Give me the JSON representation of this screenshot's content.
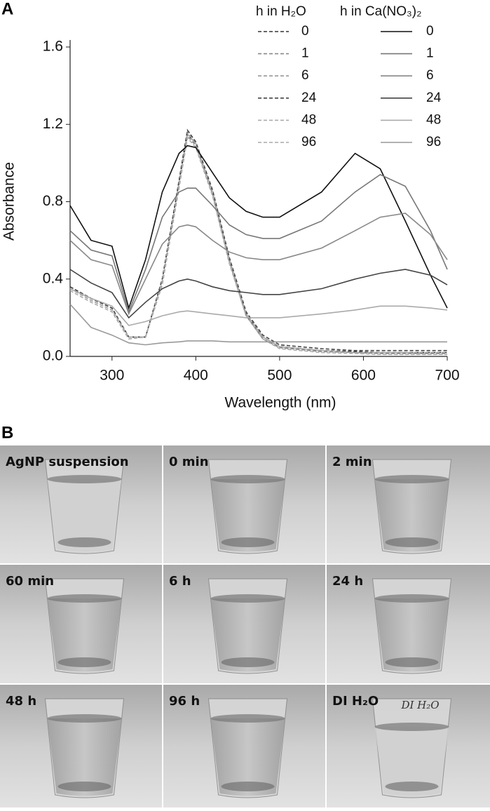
{
  "chart_data": {
    "type": "line",
    "panel_label": "A",
    "xlabel": "Wavelength (nm)",
    "ylabel": "Absorbance",
    "xlim": [
      250,
      700
    ],
    "xticks": [
      300,
      400,
      500,
      600,
      700
    ],
    "ylim": [
      0,
      1.6
    ],
    "yticks": [
      {
        "value": 0,
        "label": "0.0"
      },
      0.4,
      0.8,
      1.2,
      1.6
    ],
    "legend_titles": [
      "h in H₂O",
      "h in Ca(NO₃)₂"
    ],
    "x": [
      250,
      275,
      300,
      320,
      340,
      360,
      380,
      390,
      400,
      420,
      440,
      460,
      480,
      500,
      550,
      590,
      620,
      650,
      680,
      700
    ],
    "series": [
      {
        "name": "0",
        "style": "dashed",
        "color": "#333333",
        "values": [
          0.36,
          0.3,
          0.25,
          0.1,
          0.1,
          0.4,
          0.9,
          1.15,
          1.1,
          0.85,
          0.5,
          0.22,
          0.1,
          0.05,
          0.03,
          0.025,
          0.02,
          0.02,
          0.02,
          0.02
        ]
      },
      {
        "name": "1",
        "style": "dashed",
        "color": "#888888",
        "values": [
          0.35,
          0.29,
          0.24,
          0.1,
          0.1,
          0.38,
          0.88,
          1.14,
          1.09,
          0.84,
          0.49,
          0.21,
          0.09,
          0.045,
          0.025,
          0.02,
          0.015,
          0.015,
          0.015,
          0.015
        ]
      },
      {
        "name": "6",
        "style": "dashed",
        "color": "#999999",
        "values": [
          0.35,
          0.29,
          0.24,
          0.1,
          0.1,
          0.39,
          0.9,
          1.16,
          1.1,
          0.86,
          0.51,
          0.23,
          0.1,
          0.05,
          0.03,
          0.02,
          0.02,
          0.02,
          0.02,
          0.02
        ]
      },
      {
        "name": "24",
        "style": "dashed",
        "color": "#444444",
        "values": [
          0.36,
          0.3,
          0.25,
          0.1,
          0.1,
          0.4,
          0.91,
          1.17,
          1.11,
          0.86,
          0.51,
          0.23,
          0.11,
          0.06,
          0.04,
          0.03,
          0.03,
          0.03,
          0.03,
          0.03
        ]
      },
      {
        "name": "48",
        "style": "dashed",
        "color": "#aaaaaa",
        "values": [
          0.35,
          0.29,
          0.24,
          0.1,
          0.1,
          0.39,
          0.89,
          1.15,
          1.1,
          0.85,
          0.5,
          0.22,
          0.1,
          0.05,
          0.03,
          0.02,
          0.02,
          0.02,
          0.01,
          0.01
        ]
      },
      {
        "name": "96",
        "style": "dashed",
        "color": "#aaaaaa",
        "values": [
          0.34,
          0.28,
          0.23,
          0.09,
          0.1,
          0.37,
          0.87,
          1.13,
          1.08,
          0.83,
          0.48,
          0.21,
          0.09,
          0.04,
          0.02,
          0.015,
          0.01,
          0.01,
          0.01,
          0.01
        ]
      },
      {
        "name": "0",
        "style": "solid",
        "color": "#111111",
        "values": [
          0.78,
          0.6,
          0.57,
          0.25,
          0.5,
          0.85,
          1.05,
          1.09,
          1.08,
          0.95,
          0.82,
          0.75,
          0.72,
          0.72,
          0.85,
          1.05,
          0.97,
          0.7,
          0.42,
          0.25
        ]
      },
      {
        "name": "1",
        "style": "solid",
        "color": "#777777",
        "values": [
          0.65,
          0.55,
          0.52,
          0.23,
          0.45,
          0.72,
          0.85,
          0.87,
          0.87,
          0.78,
          0.68,
          0.63,
          0.61,
          0.61,
          0.7,
          0.85,
          0.94,
          0.88,
          0.65,
          0.45
        ]
      },
      {
        "name": "6",
        "style": "solid",
        "color": "#888888",
        "values": [
          0.6,
          0.5,
          0.47,
          0.22,
          0.4,
          0.58,
          0.67,
          0.68,
          0.67,
          0.6,
          0.54,
          0.51,
          0.5,
          0.5,
          0.56,
          0.65,
          0.72,
          0.74,
          0.63,
          0.5
        ]
      },
      {
        "name": "24",
        "style": "solid",
        "color": "#444444",
        "values": [
          0.45,
          0.38,
          0.33,
          0.2,
          0.28,
          0.35,
          0.39,
          0.4,
          0.39,
          0.36,
          0.34,
          0.33,
          0.32,
          0.32,
          0.35,
          0.4,
          0.43,
          0.45,
          0.42,
          0.37
        ]
      },
      {
        "name": "48",
        "style": "solid",
        "color": "#aaaaaa",
        "values": [
          0.35,
          0.3,
          0.26,
          0.16,
          0.18,
          0.21,
          0.23,
          0.235,
          0.23,
          0.22,
          0.21,
          0.2,
          0.2,
          0.2,
          0.22,
          0.24,
          0.26,
          0.26,
          0.25,
          0.24
        ]
      },
      {
        "name": "96",
        "style": "solid",
        "color": "#999999",
        "values": [
          0.27,
          0.15,
          0.11,
          0.07,
          0.06,
          0.07,
          0.075,
          0.08,
          0.08,
          0.08,
          0.075,
          0.075,
          0.075,
          0.075,
          0.075,
          0.075,
          0.075,
          0.075,
          0.075,
          0.075
        ]
      }
    ]
  },
  "photos": {
    "panel_label": "B",
    "labels": [
      "AgNP suspension",
      "0 min",
      "2 min",
      "60 min",
      "6 h",
      "24 h",
      "48 h",
      "96 h",
      "DI H₂O"
    ],
    "beaker_note": "DI H₂O"
  }
}
